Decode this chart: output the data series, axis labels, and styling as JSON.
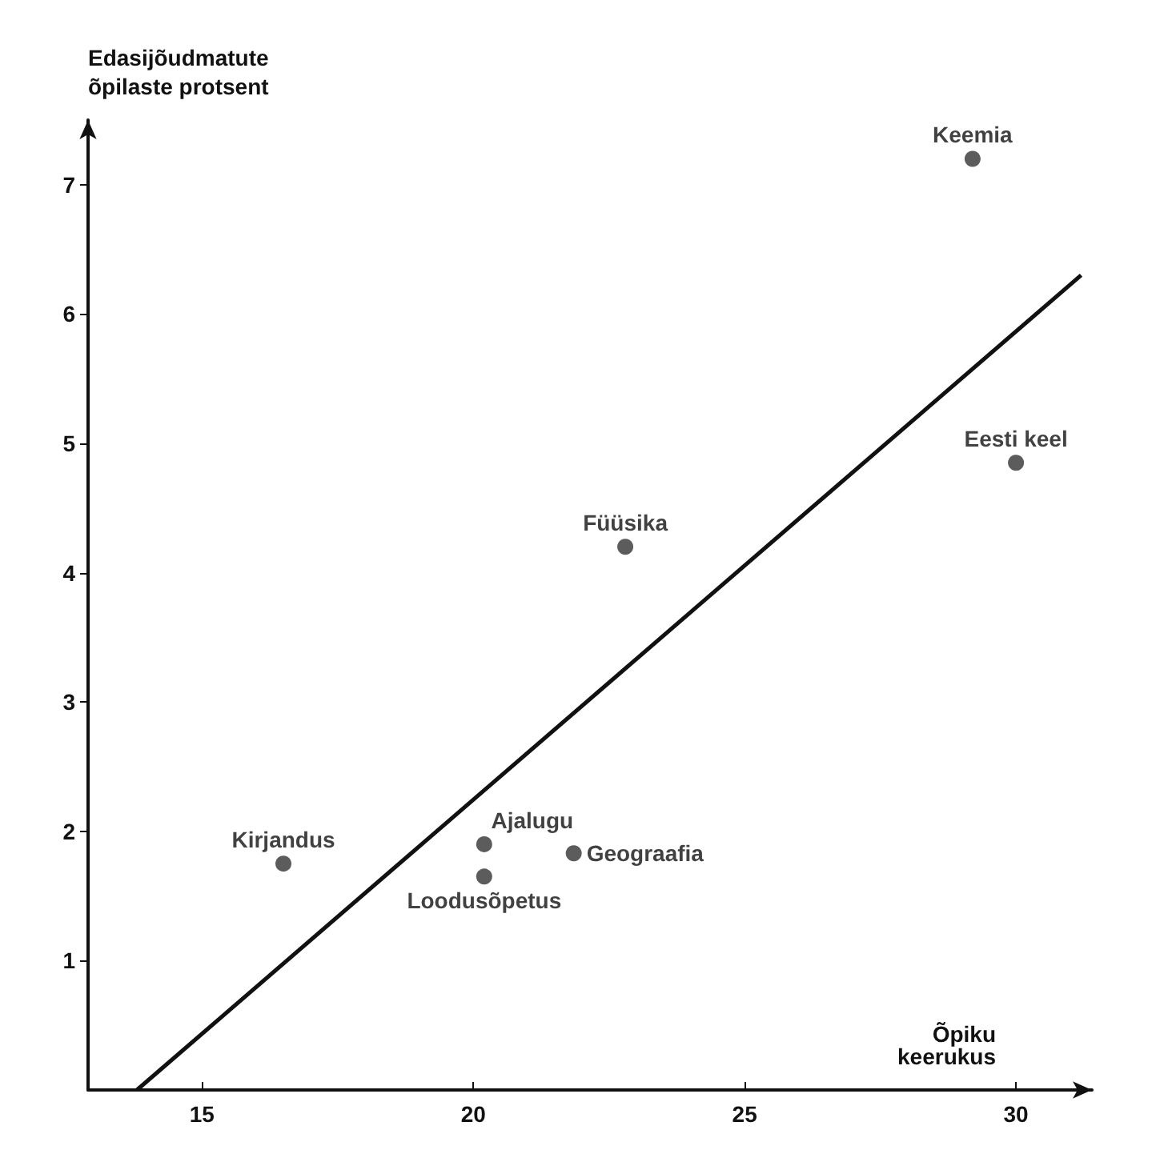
{
  "chart_data": {
    "type": "scatter",
    "xlabel": "Õpiku\nkeerukus",
    "ylabel": "Edasijõudmatute\nõpilaste protsent",
    "series": [
      {
        "color": "#333333",
        "x": [
          16.5,
          20.2,
          20.2,
          21.85,
          22.8,
          30,
          29.2
        ],
        "values": [
          1.75,
          1.9,
          1.65,
          1.83,
          4.2,
          4.85,
          7.2
        ],
        "marker": "circle"
      },
      {
        "type": "line",
        "color": "#111111",
        "x": [
          13.8,
          31.2
        ],
        "values": [
          0,
          6.3
        ],
        "marker": "none",
        "line_style": "solid"
      }
    ],
    "annotations": [
      {
        "text": "Kirjandus",
        "x": 16.5,
        "y": 1.75
      },
      {
        "text": "Ajalugu",
        "x": 20.2,
        "y": 1.9
      },
      {
        "text": "Loodusõpetus",
        "x": 20.2,
        "y": 1.65
      },
      {
        "text": "Geograafia",
        "x": 21.85,
        "y": 1.83
      },
      {
        "text": "Füüsika",
        "x": 22.8,
        "y": 4.2
      },
      {
        "text": "Eesti keel",
        "x": 30,
        "y": 4.85
      },
      {
        "text": "Keemia",
        "x": 29.2,
        "y": 7.2
      }
    ],
    "xlim": [
      12.9,
      31.4
    ],
    "xticks": [
      15,
      20,
      25,
      30
    ],
    "ylim": [
      0,
      7.5
    ],
    "yticks": [
      1,
      2,
      3,
      4,
      5,
      6,
      7
    ],
    "grid": false
  }
}
